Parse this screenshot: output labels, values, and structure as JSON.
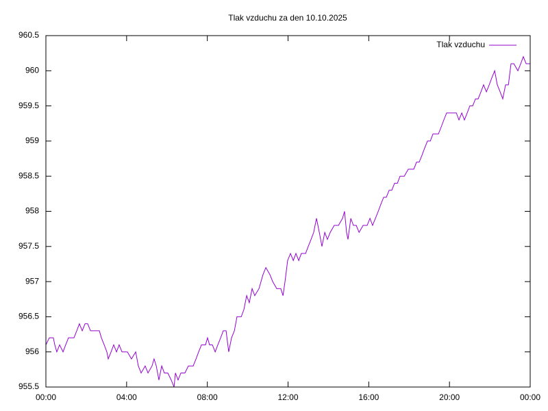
{
  "chart_data": {
    "type": "line",
    "title": "Tlak vzduchu za den 10.10.2025",
    "x": [
      0,
      0.17,
      0.37,
      0.44,
      0.54,
      0.68,
      0.85,
      0.98,
      1.12,
      1.39,
      1.53,
      1.66,
      1.8,
      1.94,
      2.07,
      2.21,
      2.48,
      2.65,
      2.75,
      2.89,
      3.02,
      3.09,
      3.23,
      3.36,
      3.5,
      3.63,
      3.77,
      4.04,
      4.24,
      4.45,
      4.58,
      4.72,
      4.92,
      5.06,
      5.26,
      5.36,
      5.47,
      5.6,
      5.74,
      5.87,
      6.04,
      6.21,
      6.35,
      6.42,
      6.55,
      6.69,
      6.89,
      7.06,
      7.3,
      7.44,
      7.57,
      7.71,
      7.91,
      8.01,
      8.11,
      8.25,
      8.39,
      8.52,
      8.66,
      8.79,
      8.93,
      9.06,
      9.2,
      9.34,
      9.47,
      9.68,
      9.81,
      9.95,
      10.08,
      10.22,
      10.35,
      10.56,
      10.76,
      10.9,
      11.1,
      11.24,
      11.44,
      11.64,
      11.75,
      11.85,
      11.98,
      12.12,
      12.26,
      12.39,
      12.53,
      12.66,
      12.87,
      13.0,
      13.14,
      13.27,
      13.41,
      13.55,
      13.68,
      13.82,
      13.95,
      14.09,
      14.29,
      14.5,
      14.7,
      14.8,
      14.9,
      14.97,
      15.11,
      15.24,
      15.38,
      15.52,
      15.72,
      15.92,
      16.06,
      16.19,
      16.33,
      16.47,
      16.6,
      16.74,
      16.87,
      17.01,
      17.14,
      17.28,
      17.42,
      17.55,
      17.76,
      17.96,
      18.23,
      18.37,
      18.5,
      18.64,
      18.77,
      18.91,
      19.05,
      19.18,
      19.32,
      19.45,
      19.59,
      19.72,
      19.86,
      20.13,
      20.34,
      20.47,
      20.61,
      20.74,
      20.88,
      21.01,
      21.15,
      21.29,
      21.42,
      21.56,
      21.69,
      21.83,
      21.97,
      22.1,
      22.24,
      22.37,
      22.51,
      22.64,
      22.78,
      22.92,
      23.05,
      23.19,
      23.39,
      23.53,
      23.66,
      23.8,
      24.0
    ],
    "series": [
      {
        "name": "Tlak vzduchu",
        "color": "#9400d3",
        "values": [
          956.1,
          956.2,
          956.2,
          956.1,
          956.0,
          956.1,
          956.0,
          956.1,
          956.2,
          956.2,
          956.3,
          956.4,
          956.3,
          956.4,
          956.4,
          956.3,
          956.3,
          956.3,
          956.2,
          956.1,
          956.0,
          955.9,
          956.0,
          956.1,
          956.0,
          956.1,
          956.0,
          956.0,
          955.9,
          956.0,
          955.8,
          955.7,
          955.8,
          955.7,
          955.8,
          955.9,
          955.8,
          955.6,
          955.8,
          955.7,
          955.7,
          955.6,
          955.5,
          955.7,
          955.6,
          955.7,
          955.7,
          955.8,
          955.8,
          955.9,
          956.0,
          956.1,
          956.1,
          956.2,
          956.1,
          956.1,
          956.0,
          956.1,
          956.2,
          956.3,
          956.3,
          956.0,
          956.2,
          956.3,
          956.5,
          956.5,
          956.6,
          956.8,
          956.7,
          956.9,
          956.8,
          956.9,
          957.1,
          957.2,
          957.1,
          957.0,
          956.9,
          956.9,
          956.8,
          957.0,
          957.3,
          957.4,
          957.3,
          957.4,
          957.3,
          957.4,
          957.4,
          957.5,
          957.6,
          957.7,
          957.9,
          957.7,
          957.5,
          957.7,
          957.6,
          957.7,
          957.8,
          957.8,
          957.9,
          958.0,
          957.7,
          957.6,
          957.9,
          957.8,
          957.8,
          957.7,
          957.8,
          957.8,
          957.9,
          957.8,
          957.9,
          958.0,
          958.1,
          958.2,
          958.2,
          958.3,
          958.3,
          958.4,
          958.4,
          958.5,
          958.5,
          958.6,
          958.6,
          958.7,
          958.7,
          958.8,
          958.9,
          959.0,
          959.0,
          959.1,
          959.1,
          959.1,
          959.2,
          959.3,
          959.4,
          959.4,
          959.4,
          959.3,
          959.4,
          959.3,
          959.4,
          959.5,
          959.5,
          959.6,
          959.6,
          959.7,
          959.8,
          959.7,
          959.8,
          959.9,
          960.0,
          959.8,
          959.7,
          959.6,
          959.8,
          959.8,
          960.1,
          960.1,
          960.0,
          960.1,
          960.2,
          960.1,
          960.1
        ]
      }
    ],
    "xlim": [
      0,
      24
    ],
    "xticks": [
      {
        "value": 0,
        "label": "00:00"
      },
      {
        "value": 4,
        "label": "04:00"
      },
      {
        "value": 8,
        "label": "08:00"
      },
      {
        "value": 12,
        "label": "12:00"
      },
      {
        "value": 16,
        "label": "16:00"
      },
      {
        "value": 20,
        "label": "20:00"
      },
      {
        "value": 24,
        "label": "00:00"
      }
    ],
    "ylim": [
      955.5,
      960.5
    ],
    "yticks": [
      955.5,
      956,
      956.5,
      957,
      957.5,
      958,
      958.5,
      959,
      959.5,
      960,
      960.5
    ],
    "grid": false,
    "legend": "top-right"
  }
}
